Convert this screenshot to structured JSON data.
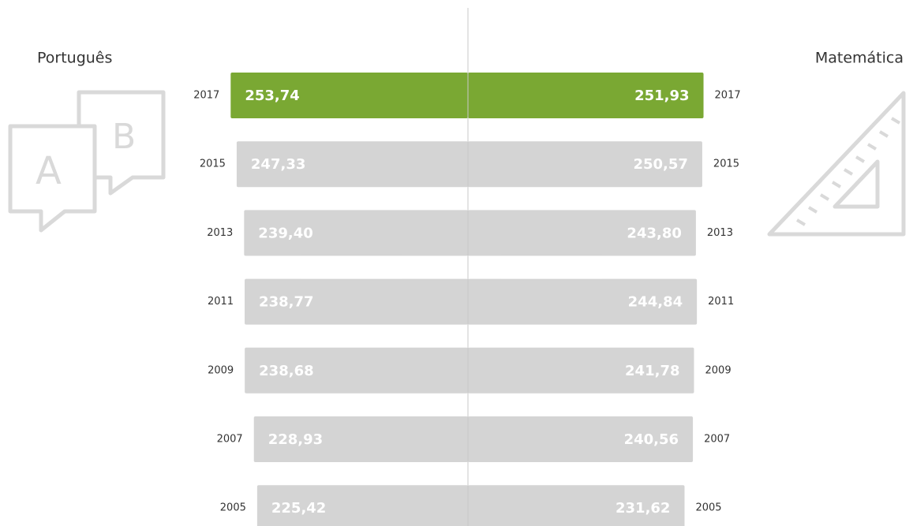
{
  "chart_data": {
    "type": "butterfly",
    "categories": [
      "2017",
      "2015",
      "2013",
      "2011",
      "2009",
      "2007",
      "2005"
    ],
    "series": [
      {
        "name": "Português",
        "side": "left",
        "colors": [
          "#7aa833",
          "#d4d4d4",
          "#d4d4d4",
          "#d4d4d4",
          "#d4d4d4",
          "#d4d4d4",
          "#d4d4d4"
        ],
        "values": [
          253.74,
          247.33,
          239.4,
          238.77,
          238.68,
          228.93,
          225.42
        ],
        "value_labels": [
          "253,74",
          "247,33",
          "239,40",
          "238,77",
          "238,68",
          "228,93",
          "225,42"
        ]
      },
      {
        "name": "Matemática",
        "side": "right",
        "colors": [
          "#7aa833",
          "#d4d4d4",
          "#d4d4d4",
          "#d4d4d4",
          "#d4d4d4",
          "#d4d4d4",
          "#d4d4d4"
        ],
        "values": [
          251.93,
          250.57,
          243.8,
          244.84,
          241.78,
          240.56,
          231.62
        ],
        "value_labels": [
          "251,93",
          "250,57",
          "243,80",
          "244,84",
          "241,78",
          "240,56",
          "231,62"
        ]
      }
    ]
  }
}
